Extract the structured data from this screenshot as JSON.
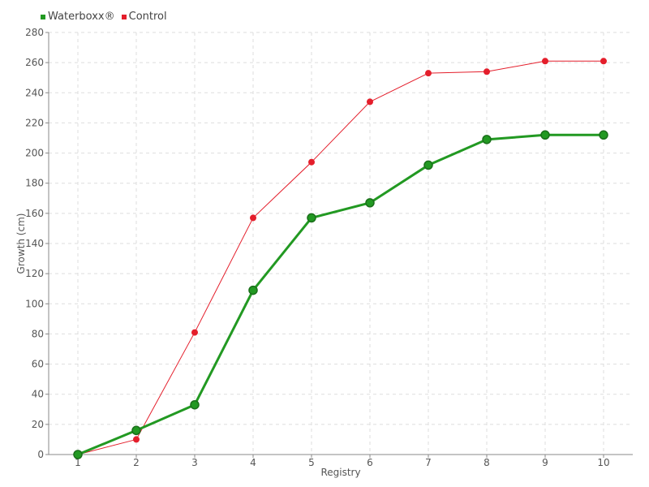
{
  "chart_data": {
    "type": "line",
    "title": "",
    "xlabel": "Registry",
    "ylabel": "Growth (cm)",
    "categories": [
      "1",
      "2",
      "3",
      "4",
      "5",
      "6",
      "7",
      "8",
      "9",
      "10"
    ],
    "ylim": [
      0,
      280
    ],
    "yticks": [
      "0",
      "20",
      "40",
      "60",
      "80",
      "100",
      "120",
      "140",
      "160",
      "180",
      "200",
      "220",
      "240",
      "260",
      "280"
    ],
    "grid": true,
    "legend_position": "top-left",
    "series": [
      {
        "name": "Waterboxx®",
        "color": "#229922",
        "values": [
          0,
          16,
          33,
          109,
          157,
          167,
          192,
          209,
          212,
          212
        ]
      },
      {
        "name": "Control",
        "color": "#e41e2b",
        "values": [
          0,
          10,
          81,
          157,
          194,
          234,
          253,
          254,
          261,
          261
        ]
      }
    ]
  }
}
